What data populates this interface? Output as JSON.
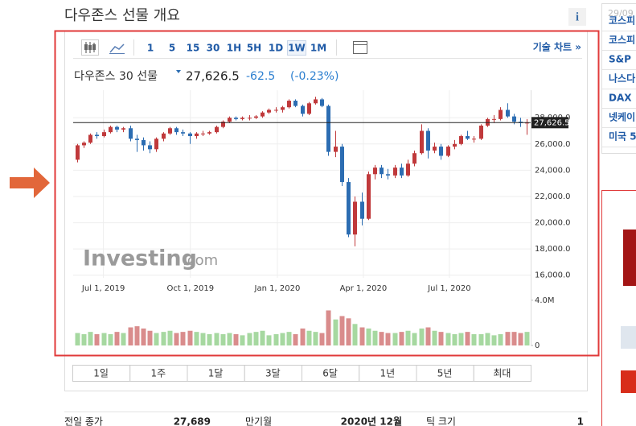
{
  "header": {
    "title": "다우존스 선물 개요",
    "info": "i"
  },
  "toolbar": {
    "intervals": [
      "1",
      "5",
      "15",
      "30",
      "1H",
      "5H",
      "1D",
      "1W",
      "1M"
    ],
    "advanced": "기술 차트 »"
  },
  "quote": {
    "name": "다우존스 30 선물",
    "last": "27,626.5",
    "change": "-62.5",
    "change_pct": "(-0.23%)"
  },
  "chart_data": {
    "type": "candlestick",
    "x": [
      "2019-06-03",
      "2019-06-10",
      "2019-06-17",
      "2019-06-24",
      "2019-07-01",
      "2019-07-08",
      "2019-07-15",
      "2019-07-22",
      "2019-07-29",
      "2019-08-05",
      "2019-08-12",
      "2019-08-19",
      "2019-08-26",
      "2019-09-02",
      "2019-09-09",
      "2019-09-16",
      "2019-09-23",
      "2019-09-30",
      "2019-10-07",
      "2019-10-14",
      "2019-10-21",
      "2019-10-28",
      "2019-11-04",
      "2019-11-11",
      "2019-11-18",
      "2019-11-25",
      "2019-12-02",
      "2019-12-09",
      "2019-12-16",
      "2019-12-23",
      "2019-12-30",
      "2020-01-06",
      "2020-01-13",
      "2020-01-20",
      "2020-01-27",
      "2020-02-03",
      "2020-02-10",
      "2020-02-17",
      "2020-02-24",
      "2020-03-02",
      "2020-03-09",
      "2020-03-16",
      "2020-03-23",
      "2020-03-30",
      "2020-04-06",
      "2020-04-13",
      "2020-04-20",
      "2020-04-27",
      "2020-05-04",
      "2020-05-11",
      "2020-05-18",
      "2020-05-25",
      "2020-06-01",
      "2020-06-08",
      "2020-06-15",
      "2020-06-22",
      "2020-06-29",
      "2020-07-06",
      "2020-07-13",
      "2020-07-20",
      "2020-07-27",
      "2020-08-03",
      "2020-08-10",
      "2020-08-17",
      "2020-08-24",
      "2020-08-31",
      "2020-09-07",
      "2020-09-14",
      "2020-09-21"
    ],
    "open": [
      24800,
      25900,
      26100,
      26700,
      26600,
      26900,
      27300,
      27100,
      27200,
      26400,
      26300,
      25900,
      25600,
      26400,
      26800,
      27200,
      26900,
      26800,
      26600,
      26800,
      26800,
      26900,
      27300,
      27700,
      28000,
      27900,
      28000,
      28000,
      28100,
      28400,
      28600,
      28600,
      28800,
      29300,
      28900,
      28300,
      29100,
      29400,
      28900,
      25400,
      25800,
      23100,
      19100,
      21600,
      20300,
      23700,
      24200,
      23700,
      23600,
      24200,
      23600,
      24500,
      25300,
      27000,
      25500,
      25800,
      25100,
      25800,
      26000,
      26600,
      26400,
      26400,
      27400,
      27900,
      27900,
      28600,
      28100,
      27700,
      27600
    ],
    "high": [
      26000,
      26200,
      26800,
      26900,
      27100,
      27400,
      27400,
      27300,
      27400,
      26700,
      26500,
      26200,
      26500,
      26900,
      27300,
      27300,
      27100,
      26900,
      26900,
      27000,
      27000,
      27400,
      27800,
      28100,
      28100,
      28100,
      28200,
      28200,
      28500,
      28700,
      28800,
      28900,
      29400,
      29400,
      29000,
      29200,
      29600,
      29500,
      29000,
      27000,
      26000,
      23400,
      22000,
      22300,
      23900,
      24400,
      24400,
      24100,
      24400,
      24500,
      24800,
      25500,
      27500,
      27200,
      26100,
      26000,
      25900,
      26300,
      26700,
      27000,
      26600,
      27500,
      28000,
      28200,
      28800,
      29100,
      28300,
      28000,
      27900
    ],
    "low": [
      24600,
      25700,
      26000,
      26400,
      26500,
      26800,
      26900,
      26900,
      26200,
      25400,
      25500,
      25300,
      25400,
      26200,
      26700,
      26700,
      26600,
      26000,
      26400,
      26600,
      26700,
      26800,
      27200,
      27600,
      27800,
      27800,
      27800,
      27900,
      28000,
      28300,
      28400,
      28400,
      28700,
      28800,
      28100,
      28200,
      29000,
      28800,
      25100,
      25000,
      22800,
      18900,
      18200,
      19800,
      20200,
      23300,
      23400,
      23300,
      23400,
      23400,
      23500,
      24300,
      25200,
      24900,
      25300,
      24800,
      25000,
      25600,
      25900,
      26300,
      26100,
      26300,
      27300,
      27600,
      27800,
      28000,
      27500,
      27300,
      26700
    ],
    "close": [
      25900,
      26100,
      26700,
      26600,
      26900,
      27300,
      27100,
      27200,
      26400,
      26300,
      25900,
      25600,
      26400,
      26800,
      27200,
      26900,
      26800,
      26600,
      26800,
      26800,
      26900,
      27300,
      27700,
      28000,
      27900,
      28000,
      28000,
      28100,
      28400,
      28600,
      28600,
      28800,
      29300,
      28900,
      28300,
      29100,
      29400,
      28900,
      25400,
      25800,
      23100,
      19100,
      21600,
      20300,
      23700,
      24200,
      23700,
      23600,
      24200,
      23600,
      24500,
      25300,
      27000,
      25500,
      25800,
      25100,
      25800,
      26000,
      26600,
      26400,
      26400,
      27400,
      27900,
      27900,
      28600,
      28100,
      27700,
      27600,
      27626.5
    ],
    "volume": [
      1100000,
      1000000,
      1200000,
      1000000,
      1100000,
      1000000,
      1200000,
      1100000,
      1600000,
      1700000,
      1500000,
      1300000,
      1100000,
      1200000,
      1300000,
      1100000,
      1200000,
      1300000,
      1200000,
      1100000,
      1000000,
      1100000,
      1000000,
      1100000,
      1000000,
      900000,
      1100000,
      1200000,
      1300000,
      900000,
      1000000,
      1100000,
      1200000,
      1000000,
      1500000,
      1300000,
      1200000,
      1100000,
      3100000,
      2300000,
      2600000,
      2400000,
      1900000,
      1600000,
      1500000,
      1300000,
      1200000,
      1100000,
      1100000,
      1200000,
      1300000,
      1100000,
      1500000,
      1600000,
      1300000,
      1200000,
      1100000,
      1000000,
      1100000,
      1200000,
      1000000,
      1000000,
      1100000,
      900000,
      1000000,
      1200000,
      1200000,
      1100000,
      1200000
    ],
    "xlim": [
      "2019-05-30",
      "2020-09-25"
    ],
    "xticks": [
      "Jul 1, 2019",
      "Oct 1, 2019",
      "Jan 1, 2020",
      "Apr 1, 2020",
      "Jul 1, 2020"
    ],
    "ylim": [
      15800,
      30100
    ],
    "yticks": [
      {
        "value": 16000,
        "label": "16,000.0"
      },
      {
        "value": 18000,
        "label": "18,000.0"
      },
      {
        "value": 20000,
        "label": "20,000.0"
      },
      {
        "value": 22000,
        "label": "22,000.0"
      },
      {
        "value": 24000,
        "label": "24,000.0"
      },
      {
        "value": 26000,
        "label": "26,000.0"
      },
      {
        "value": 28000,
        "label": "28,000.0"
      }
    ],
    "volume_ylim": [
      0,
      4500000
    ],
    "volume_yticks": [
      0,
      {
        "value": 4000000,
        "label": "4.0M"
      }
    ],
    "up_color": "#c0393b",
    "down_color": "#2c6db2",
    "up_volume_color": "#a6d8a0",
    "down_volume_color": "#d98c8c",
    "grid": true,
    "watermark": "Investing",
    "watermark_suffix": ".com"
  },
  "ranges": [
    "1일",
    "1주",
    "1달",
    "3달",
    "6달",
    "1년",
    "5년",
    "최대"
  ],
  "details": [
    [
      "전일 종가",
      "27,689"
    ],
    [
      "만기월",
      "2020년 12월"
    ],
    [
      "틱 크기",
      "1"
    ]
  ],
  "sidebar": {
    "date": "29/09",
    "items": [
      "코스피",
      "코스피",
      "S&P",
      "나스다",
      "DAX",
      "넷케이",
      "미국 5"
    ]
  }
}
